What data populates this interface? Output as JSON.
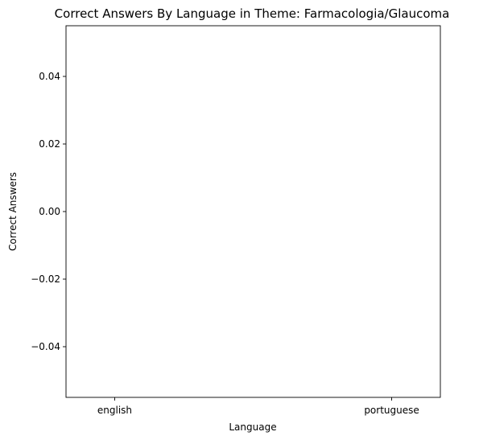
{
  "chart_data": {
    "type": "bar",
    "title": "Correct Answers By Language in Theme: Farmacologia/Glaucoma",
    "xlabel": "Language",
    "ylabel": "Correct Answers",
    "categories": [
      "english",
      "portuguese"
    ],
    "values": [
      0,
      0
    ],
    "ylim": [
      -0.055,
      0.055
    ],
    "yticks": [
      0.04,
      0.02,
      0.0,
      -0.02,
      -0.04
    ],
    "ytick_labels": [
      "0.04",
      "0.02",
      "0.00",
      "−0.02",
      "−0.04"
    ],
    "grid": false,
    "legend": "none"
  }
}
